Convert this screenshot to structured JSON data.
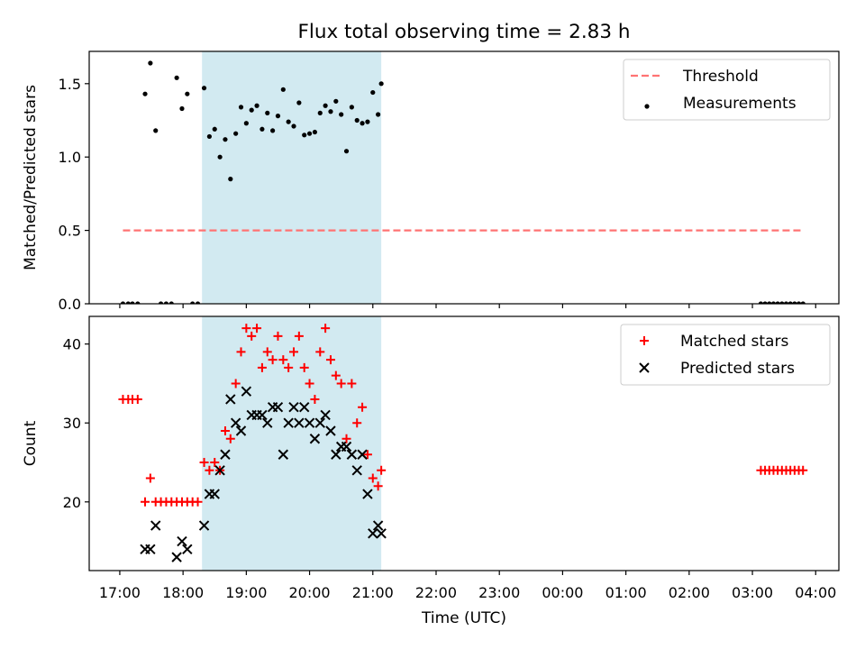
{
  "figure": {
    "title": "Flux total observing time = 2.83 h",
    "xlabel": "Time (UTC)",
    "xticks": [
      "17:00",
      "18:00",
      "19:00",
      "20:00",
      "21:00",
      "22:00",
      "23:00",
      "00:00",
      "01:00",
      "02:00",
      "03:00",
      "04:00"
    ]
  },
  "colors": {
    "threshold": "#ff7373",
    "matched": "#ff0000",
    "predicted": "#000000",
    "measurement": "#000000",
    "shade": "#add8e6"
  },
  "chart_data": [
    {
      "type": "scatter",
      "ylabel": "Matched/Predicted stars",
      "ylim": [
        0,
        1.72
      ],
      "yticks": [
        0.0,
        0.5,
        1.0,
        1.5
      ],
      "xlim": [
        "16:31",
        "04:22"
      ],
      "shaded_span": [
        "18:18",
        "21:08"
      ],
      "legend_placement": "upper right",
      "legend": [
        "Threshold",
        "Measurements"
      ],
      "threshold": {
        "name": "Threshold",
        "value": 0.5,
        "x_range": [
          "17:03",
          "03:48"
        ]
      },
      "series": [
        {
          "name": "Measurements",
          "points": [
            [
              "17:03",
              0
            ],
            [
              "17:08",
              0
            ],
            [
              "17:12",
              0
            ],
            [
              "17:17",
              0
            ],
            [
              "17:24",
              1.43
            ],
            [
              "17:29",
              1.64
            ],
            [
              "17:34",
              1.18
            ],
            [
              "17:39",
              0
            ],
            [
              "17:44",
              0
            ],
            [
              "17:49",
              0
            ],
            [
              "17:54",
              1.54
            ],
            [
              "17:59",
              1.33
            ],
            [
              "18:04",
              1.43
            ],
            [
              "18:09",
              0
            ],
            [
              "18:14",
              0
            ],
            [
              "18:20",
              1.47
            ],
            [
              "18:25",
              1.14
            ],
            [
              "18:30",
              1.19
            ],
            [
              "18:35",
              1.0
            ],
            [
              "18:40",
              1.12
            ],
            [
              "18:45",
              0.85
            ],
            [
              "18:50",
              1.16
            ],
            [
              "18:55",
              1.34
            ],
            [
              "19:00",
              1.23
            ],
            [
              "19:05",
              1.32
            ],
            [
              "19:10",
              1.35
            ],
            [
              "19:15",
              1.19
            ],
            [
              "19:20",
              1.3
            ],
            [
              "19:25",
              1.18
            ],
            [
              "19:30",
              1.28
            ],
            [
              "19:35",
              1.46
            ],
            [
              "19:40",
              1.24
            ],
            [
              "19:45",
              1.21
            ],
            [
              "19:50",
              1.37
            ],
            [
              "19:55",
              1.15
            ],
            [
              "20:00",
              1.16
            ],
            [
              "20:05",
              1.17
            ],
            [
              "20:10",
              1.3
            ],
            [
              "20:15",
              1.35
            ],
            [
              "20:20",
              1.31
            ],
            [
              "20:25",
              1.38
            ],
            [
              "20:30",
              1.29
            ],
            [
              "20:35",
              1.04
            ],
            [
              "20:40",
              1.34
            ],
            [
              "20:45",
              1.25
            ],
            [
              "20:50",
              1.23
            ],
            [
              "20:55",
              1.24
            ],
            [
              "21:00",
              1.44
            ],
            [
              "21:05",
              1.29
            ],
            [
              "21:08",
              1.5
            ],
            [
              "03:08",
              0
            ],
            [
              "03:12",
              0
            ],
            [
              "03:16",
              0
            ],
            [
              "03:20",
              0
            ],
            [
              "03:24",
              0
            ],
            [
              "03:28",
              0
            ],
            [
              "03:32",
              0
            ],
            [
              "03:36",
              0
            ],
            [
              "03:40",
              0
            ],
            [
              "03:44",
              0
            ],
            [
              "03:48",
              0
            ]
          ]
        }
      ]
    },
    {
      "type": "scatter",
      "ylabel": "Count",
      "ylim": [
        11.3,
        43.5
      ],
      "yticks": [
        20,
        30,
        40
      ],
      "xlim": [
        "16:31",
        "04:22"
      ],
      "shaded_span": [
        "18:18",
        "21:08"
      ],
      "legend_placement": "upper right",
      "legend": [
        "Matched stars",
        "Predicted stars"
      ],
      "series": [
        {
          "name": "Matched stars",
          "points": [
            [
              "17:03",
              33
            ],
            [
              "17:08",
              33
            ],
            [
              "17:12",
              33
            ],
            [
              "17:17",
              33
            ],
            [
              "17:24",
              20
            ],
            [
              "17:29",
              23
            ],
            [
              "17:34",
              20
            ],
            [
              "17:39",
              20
            ],
            [
              "17:44",
              20
            ],
            [
              "17:49",
              20
            ],
            [
              "17:54",
              20
            ],
            [
              "17:59",
              20
            ],
            [
              "18:04",
              20
            ],
            [
              "18:09",
              20
            ],
            [
              "18:14",
              20
            ],
            [
              "18:20",
              25
            ],
            [
              "18:25",
              24
            ],
            [
              "18:30",
              25
            ],
            [
              "18:35",
              24
            ],
            [
              "18:40",
              29
            ],
            [
              "18:45",
              28
            ],
            [
              "18:50",
              35
            ],
            [
              "18:55",
              39
            ],
            [
              "19:00",
              42
            ],
            [
              "19:05",
              41
            ],
            [
              "19:10",
              42
            ],
            [
              "19:15",
              37
            ],
            [
              "19:20",
              39
            ],
            [
              "19:25",
              38
            ],
            [
              "19:30",
              41
            ],
            [
              "19:35",
              38
            ],
            [
              "19:40",
              37
            ],
            [
              "19:45",
              39
            ],
            [
              "19:50",
              41
            ],
            [
              "19:55",
              37
            ],
            [
              "20:00",
              35
            ],
            [
              "20:05",
              33
            ],
            [
              "20:10",
              39
            ],
            [
              "20:15",
              42
            ],
            [
              "20:20",
              38
            ],
            [
              "20:25",
              36
            ],
            [
              "20:30",
              35
            ],
            [
              "20:35",
              28
            ],
            [
              "20:40",
              35
            ],
            [
              "20:45",
              30
            ],
            [
              "20:50",
              32
            ],
            [
              "20:55",
              26
            ],
            [
              "21:00",
              23
            ],
            [
              "21:05",
              22
            ],
            [
              "21:08",
              24
            ],
            [
              "03:08",
              24
            ],
            [
              "03:12",
              24
            ],
            [
              "03:16",
              24
            ],
            [
              "03:20",
              24
            ],
            [
              "03:24",
              24
            ],
            [
              "03:28",
              24
            ],
            [
              "03:32",
              24
            ],
            [
              "03:36",
              24
            ],
            [
              "03:40",
              24
            ],
            [
              "03:44",
              24
            ],
            [
              "03:48",
              24
            ]
          ]
        },
        {
          "name": "Predicted stars",
          "points": [
            [
              "17:24",
              14
            ],
            [
              "17:29",
              14
            ],
            [
              "17:34",
              17
            ],
            [
              "17:54",
              13
            ],
            [
              "17:59",
              15
            ],
            [
              "18:04",
              14
            ],
            [
              "18:20",
              17
            ],
            [
              "18:25",
              21
            ],
            [
              "18:30",
              21
            ],
            [
              "18:35",
              24
            ],
            [
              "18:40",
              26
            ],
            [
              "18:45",
              33
            ],
            [
              "18:50",
              30
            ],
            [
              "18:55",
              29
            ],
            [
              "19:00",
              34
            ],
            [
              "19:05",
              31
            ],
            [
              "19:10",
              31
            ],
            [
              "19:15",
              31
            ],
            [
              "19:20",
              30
            ],
            [
              "19:25",
              32
            ],
            [
              "19:30",
              32
            ],
            [
              "19:35",
              26
            ],
            [
              "19:40",
              30
            ],
            [
              "19:45",
              32
            ],
            [
              "19:50",
              30
            ],
            [
              "19:55",
              32
            ],
            [
              "20:00",
              30
            ],
            [
              "20:05",
              28
            ],
            [
              "20:10",
              30
            ],
            [
              "20:15",
              31
            ],
            [
              "20:20",
              29
            ],
            [
              "20:25",
              26
            ],
            [
              "20:30",
              27
            ],
            [
              "20:35",
              27
            ],
            [
              "20:40",
              26
            ],
            [
              "20:45",
              24
            ],
            [
              "20:50",
              26
            ],
            [
              "20:55",
              21
            ],
            [
              "21:00",
              16
            ],
            [
              "21:05",
              17
            ],
            [
              "21:08",
              16
            ]
          ]
        }
      ]
    }
  ]
}
